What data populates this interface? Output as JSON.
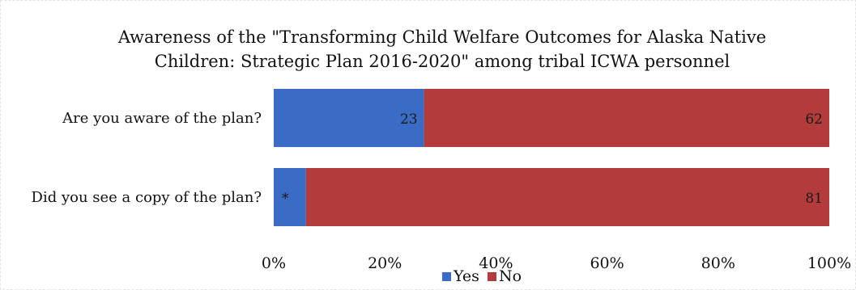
{
  "chart_data": {
    "type": "bar",
    "orientation": "horizontal",
    "stacked": "percent",
    "title": "Awareness of the \"Transforming Child Welfare Outcomes for Alaska Native Children: Strategic Plan 2016-2020\" among tribal ICWA personnel",
    "title_lines": [
      "Awareness of the \"Transforming Child Welfare Outcomes for Alaska Native",
      "Children: Strategic Plan 2016-2020\" among tribal ICWA personnel"
    ],
    "categories": [
      "Are you aware of the plan?",
      "Did you see a copy of the plan?"
    ],
    "series": [
      {
        "name": "Yes",
        "color": "#3a6cc6",
        "values": [
          23,
          5
        ],
        "data_labels": [
          "23",
          "*"
        ]
      },
      {
        "name": "No",
        "color": "#b33b3b",
        "values": [
          62,
          81
        ],
        "data_labels": [
          "62",
          "81"
        ]
      }
    ],
    "xlabel": "",
    "ylabel": "",
    "xlim": [
      0,
      100
    ],
    "x_tick_values": [
      0,
      20,
      40,
      60,
      80,
      100
    ],
    "x_ticks": [
      "0%",
      "20%",
      "40%",
      "60%",
      "80%",
      "100%"
    ],
    "grid": false,
    "legend_position": "bottom"
  }
}
